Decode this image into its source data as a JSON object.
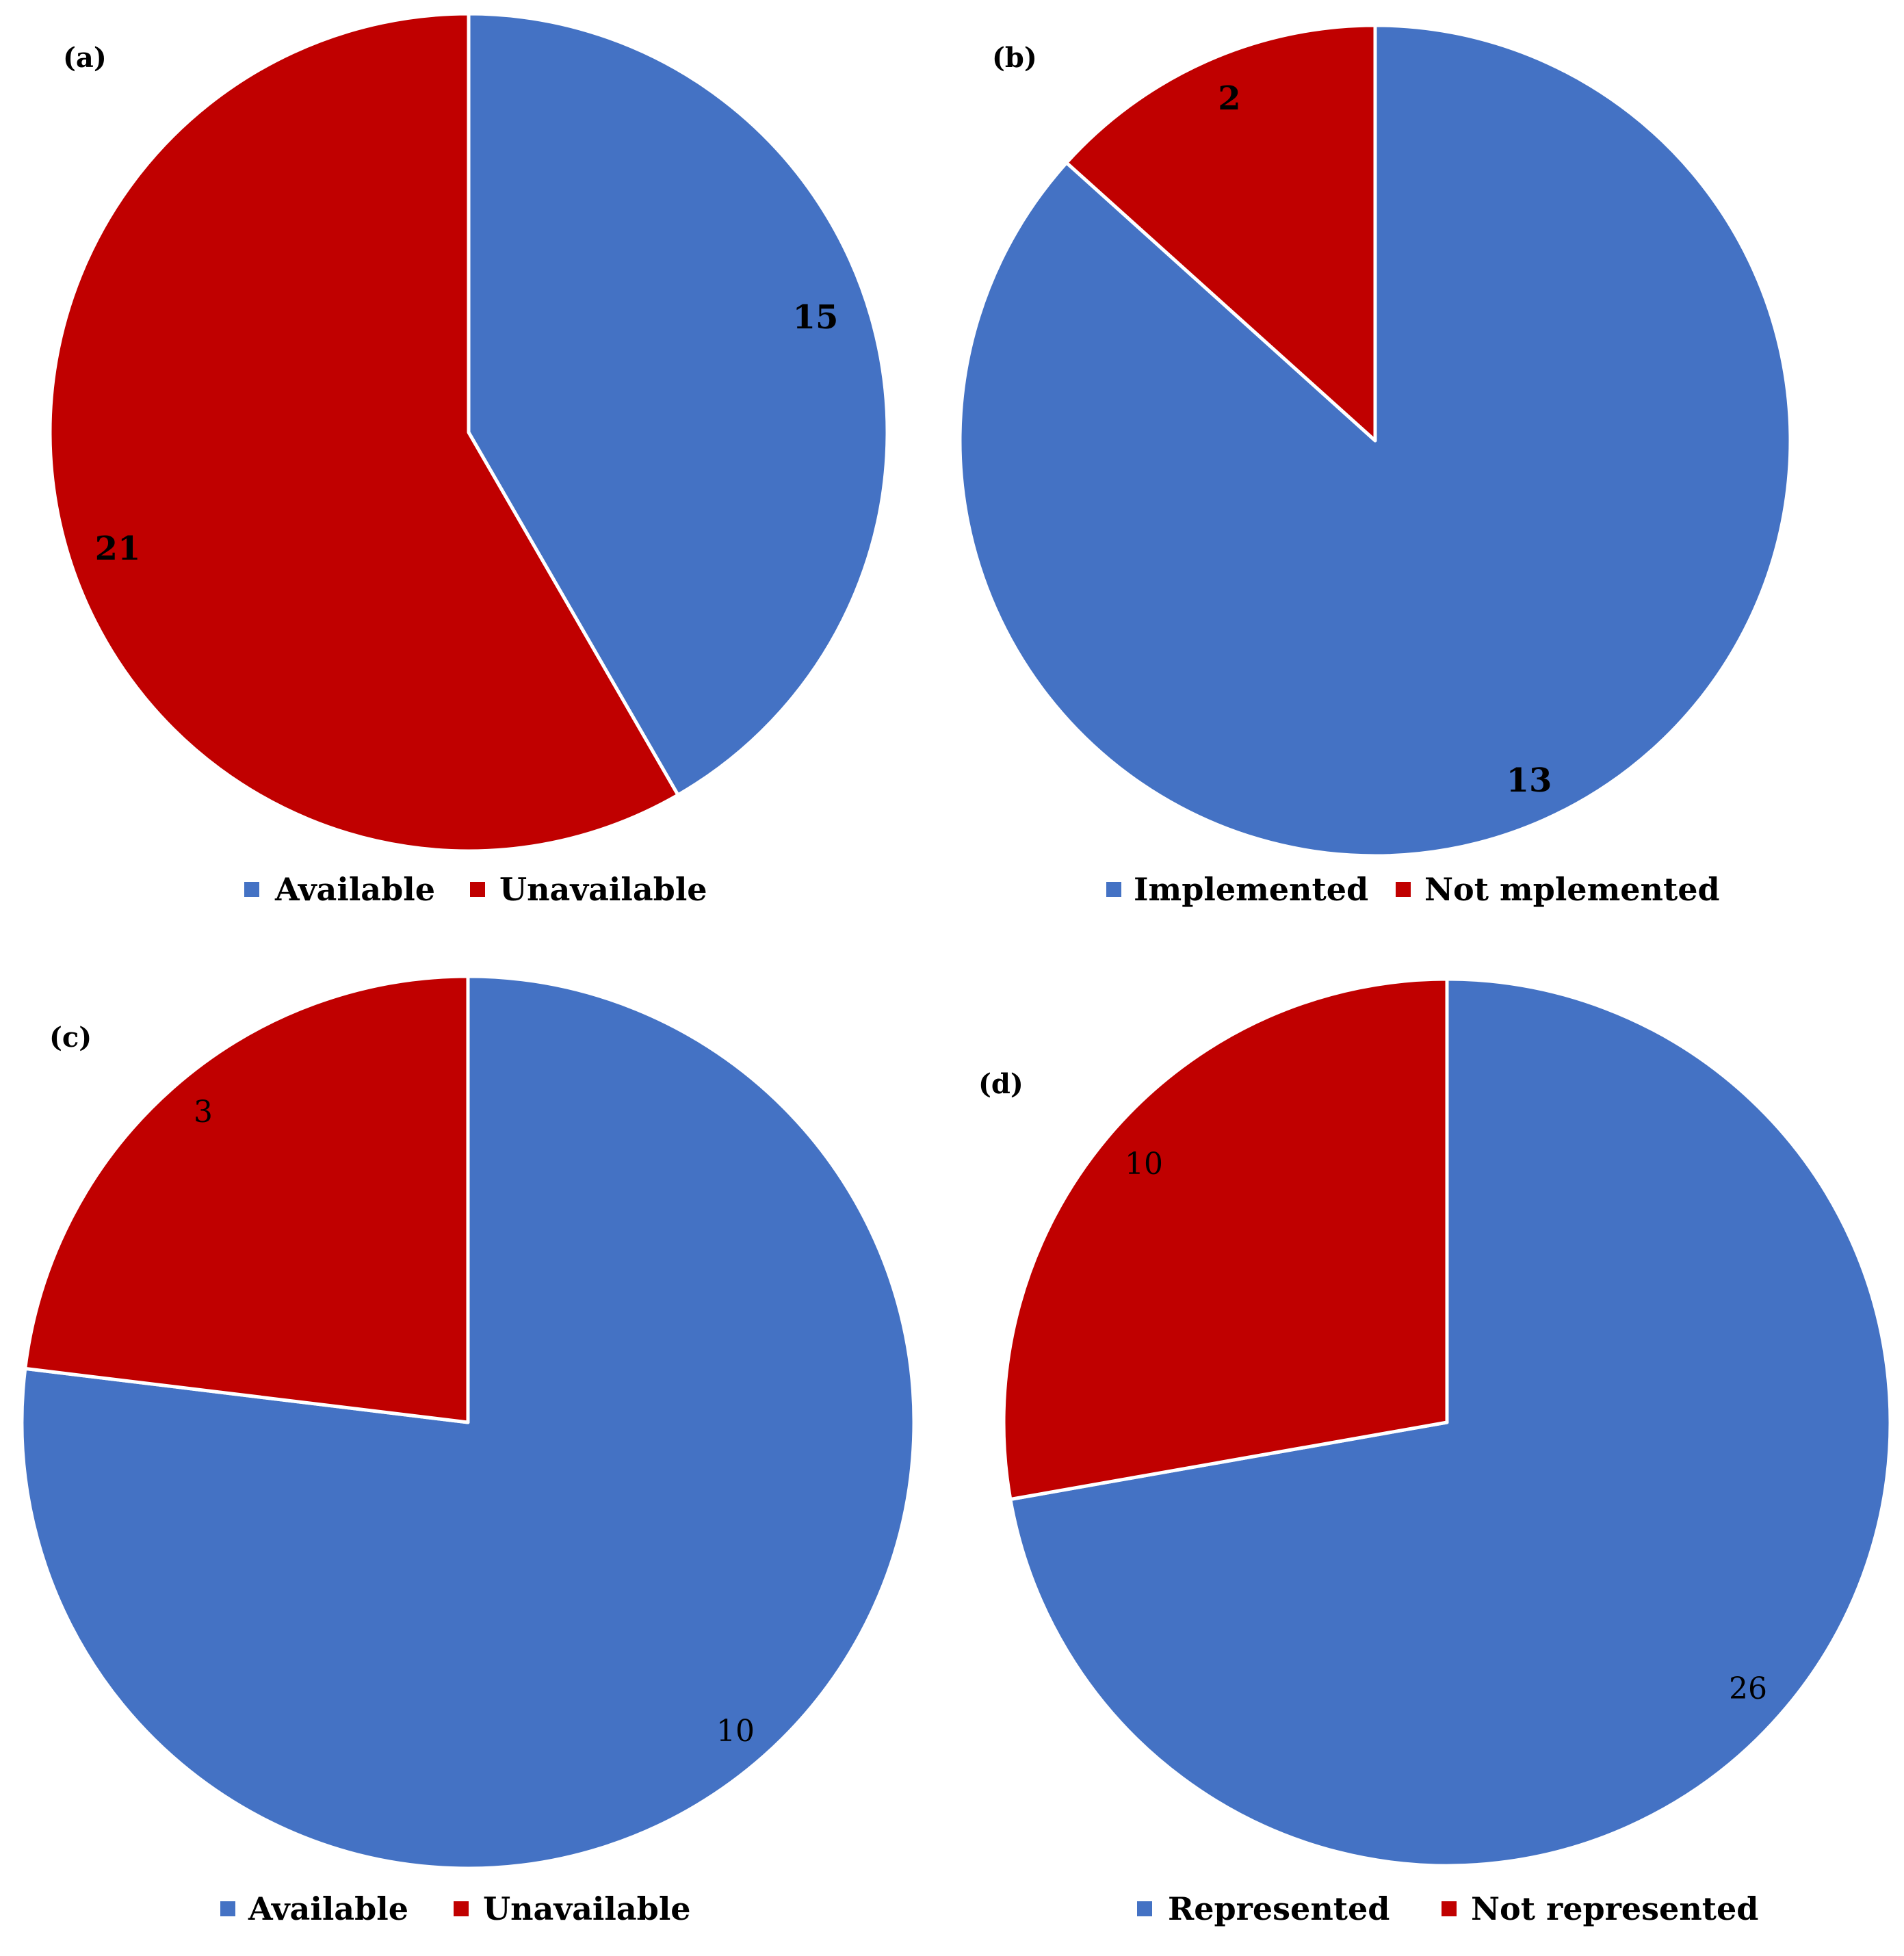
{
  "colors": {
    "blue": "#4472C4",
    "red": "#C00000",
    "slice_border": "#FFFFFF"
  },
  "chart_data": [
    {
      "type": "pie",
      "panel": "(a)",
      "categories": [
        "Available",
        "Unavailable"
      ],
      "values": [
        15,
        21
      ],
      "labels": [
        "15",
        "21"
      ],
      "legend": [
        "Available",
        "Unavailable"
      ],
      "colors": [
        "#4472C4",
        "#C00000"
      ],
      "legend_position": "bottom",
      "start": "top, clockwise"
    },
    {
      "type": "pie",
      "panel": "(b)",
      "categories": [
        "Implemented",
        "Not mplemented"
      ],
      "values": [
        13,
        2
      ],
      "labels": [
        "13",
        "2"
      ],
      "legend": [
        "Implemented",
        "Not mplemented"
      ],
      "colors": [
        "#4472C4",
        "#C00000"
      ],
      "legend_position": "bottom",
      "start": "top, clockwise"
    },
    {
      "type": "pie",
      "panel": "(c)",
      "categories": [
        "Available",
        "Unavailable"
      ],
      "values": [
        10,
        3
      ],
      "labels": [
        "10",
        "3"
      ],
      "legend": [
        "Available",
        "Unavailable"
      ],
      "colors": [
        "#4472C4",
        "#C00000"
      ],
      "legend_position": "bottom",
      "start": "top, clockwise"
    },
    {
      "type": "pie",
      "panel": "(d)",
      "categories": [
        "Represented",
        "Not represented"
      ],
      "values": [
        26,
        10
      ],
      "labels": [
        "26",
        "10"
      ],
      "legend": [
        "Represented",
        "Not represented"
      ],
      "colors": [
        "#4472C4",
        "#C00000"
      ],
      "legend_position": "bottom",
      "start": "top, clockwise"
    }
  ]
}
